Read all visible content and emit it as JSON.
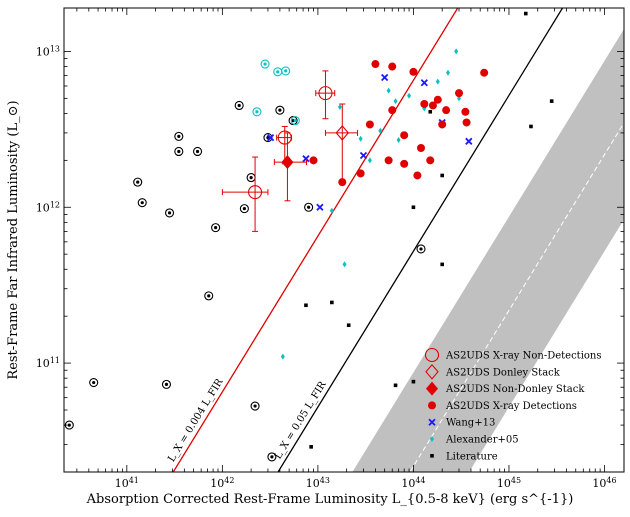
{
  "chart_data": {
    "type": "scatter",
    "xlabel": "Absorption Corrected Rest-Frame Luminosity L_{0.5-8 keV} (erg s^{-1})",
    "ylabel": "Rest-Frame Far Infrared Luminosity (L_⊙)",
    "x_scale": "log",
    "y_scale": "log",
    "xlim": [
      2.2e+40,
      1.6e+46
    ],
    "ylim": [
      20000000000.0,
      19000000000000.0
    ],
    "x_ticks": [
      {
        "value": 1e+41,
        "label": "10^41"
      },
      {
        "value": 1e+42,
        "label": "10^42"
      },
      {
        "value": 1e+43,
        "label": "10^43"
      },
      {
        "value": 1e+44,
        "label": "10^44"
      },
      {
        "value": 1e+45,
        "label": "10^45"
      },
      {
        "value": 1e+46,
        "label": "10^46"
      }
    ],
    "y_ticks": [
      {
        "value": 100000000000.0,
        "label": "10^11"
      },
      {
        "value": 1000000000000.0,
        "label": "10^12"
      },
      {
        "value": 10000000000000.0,
        "label": "10^13"
      }
    ],
    "relations": [
      {
        "label": "L_X = 0.004 L_FIR",
        "fraction": 0.004,
        "color": "#e00000",
        "style": "solid"
      },
      {
        "label": "L_X = 0.05 L_FIR",
        "fraction": 0.05,
        "color": "#000000",
        "style": "solid"
      }
    ],
    "band": {
      "fraction_center": 1.2,
      "fraction_low": 0.3,
      "fraction_high": 5.0,
      "fill": "#c0c0c0",
      "center_color": "#ffffff"
    },
    "legend_position": "lower-right",
    "series": [
      {
        "name": "AS2UDS X-ray Non-Detections",
        "marker": "open-circle-errorbar",
        "color": "#e00000",
        "points": [
          {
            "x": 2.2e+42,
            "y": 1250000000000.0,
            "x_err": [
              1.2e+42,
              8e+41
            ],
            "y_err": [
              550000000000.0,
              850000000000.0
            ]
          },
          {
            "x": 4.5e+42,
            "y": 2800000000000.0,
            "x_err": [
              8e+41,
              8e+41
            ],
            "y_err": [
              900000000000.0,
              500000000000.0
            ]
          },
          {
            "x": 1.2e+43,
            "y": 5400000000000.0,
            "x_err": [
              2.5e+42,
              3e+42
            ],
            "y_err": [
              1700000000000.0,
              2100000000000.0
            ]
          }
        ]
      },
      {
        "name": "AS2UDS Donley Stack",
        "marker": "open-diamond-errorbar",
        "color": "#e00000",
        "points": [
          {
            "x": 1.8e+43,
            "y": 3000000000000.0,
            "x_err": [
              6e+42,
              8e+42
            ],
            "y_err": [
              1600000000000.0,
              1600000000000.0
            ]
          }
        ]
      },
      {
        "name": "AS2UDS Non-Donley Stack",
        "marker": "filled-diamond-errorbar",
        "color": "#e00000",
        "points": [
          {
            "x": 4.8e+42,
            "y": 1950000000000.0,
            "x_err": [
              1.3e+42,
              2.8e+42
            ],
            "y_err": [
              850000000000.0,
              1050000000000.0
            ]
          }
        ]
      },
      {
        "name": "AS2UDS X-ray Detections",
        "marker": "filled-circle",
        "color": "#e00000",
        "points": [
          {
            "x": 1.8e+43,
            "y": 1450000000000.0
          },
          {
            "x": 9e+42,
            "y": 2000000000000.0
          },
          {
            "x": 2.8e+43,
            "y": 1650000000000.0
          },
          {
            "x": 3.5e+43,
            "y": 3400000000000.0
          },
          {
            "x": 4e+43,
            "y": 8300000000000.0
          },
          {
            "x": 5.5e+43,
            "y": 2000000000000.0
          },
          {
            "x": 6e+43,
            "y": 4200000000000.0
          },
          {
            "x": 6e+43,
            "y": 8000000000000.0
          },
          {
            "x": 8e+43,
            "y": 1900000000000.0
          },
          {
            "x": 8e+43,
            "y": 2900000000000.0
          },
          {
            "x": 1e+44,
            "y": 7400000000000.0
          },
          {
            "x": 1.1e+44,
            "y": 1600000000000.0
          },
          {
            "x": 1.2e+44,
            "y": 2400000000000.0
          },
          {
            "x": 1.3e+44,
            "y": 4600000000000.0
          },
          {
            "x": 1.5e+44,
            "y": 2000000000000.0
          },
          {
            "x": 1.6e+44,
            "y": 4500000000000.0
          },
          {
            "x": 1.8e+44,
            "y": 4900000000000.0
          },
          {
            "x": 2e+44,
            "y": 3400000000000.0
          },
          {
            "x": 2.2e+44,
            "y": 4200000000000.0
          },
          {
            "x": 3e+44,
            "y": 5400000000000.0
          },
          {
            "x": 3.5e+44,
            "y": 4100000000000.0
          },
          {
            "x": 3.6e+44,
            "y": 3500000000000.0
          },
          {
            "x": 5.5e+44,
            "y": 7300000000000.0
          }
        ]
      },
      {
        "name": "Wang+13",
        "marker": "x-cross",
        "color": "#1a1aff",
        "points": [
          {
            "x": 3.2e+42,
            "y": 2800000000000.0
          },
          {
            "x": 7.5e+42,
            "y": 2050000000000.0
          },
          {
            "x": 1.05e+43,
            "y": 1000000000000.0
          },
          {
            "x": 3e+43,
            "y": 2150000000000.0
          },
          {
            "x": 5e+43,
            "y": 6800000000000.0
          },
          {
            "x": 1.3e+44,
            "y": 6300000000000.0
          },
          {
            "x": 2e+44,
            "y": 3500000000000.0
          },
          {
            "x": 3.8e+44,
            "y": 2650000000000.0
          }
        ]
      },
      {
        "name": "Alexander+05",
        "marker": "small-diamond",
        "color": "#10c0c0",
        "points": [
          {
            "x": 1.4e+43,
            "y": 950000000000.0
          },
          {
            "x": 1.9e+43,
            "y": 430000000000.0
          },
          {
            "x": 2.8e+43,
            "y": 2750000000000.0
          },
          {
            "x": 4.3e+42,
            "y": 110000000000.0
          },
          {
            "x": 3.5e+43,
            "y": 2000000000000.0
          },
          {
            "x": 4.5e+43,
            "y": 3100000000000.0
          },
          {
            "x": 5.5e+43,
            "y": 5600000000000.0
          },
          {
            "x": 6.5e+43,
            "y": 4800000000000.0
          },
          {
            "x": 7e+43,
            "y": 2700000000000.0
          },
          {
            "x": 9e+43,
            "y": 5200000000000.0
          },
          {
            "x": 1.3e+44,
            "y": 4300000000000.0
          },
          {
            "x": 1.8e+44,
            "y": 6400000000000.0
          },
          {
            "x": 2.3e+44,
            "y": 7300000000000.0
          },
          {
            "x": 2.8e+44,
            "y": 10000000000000.0
          },
          {
            "x": 3e+44,
            "y": 5000000000000.0
          },
          {
            "x": 1.7e+43,
            "y": 4400000000000.0
          }
        ]
      },
      {
        "name": "Literature",
        "marker": "small-square",
        "color": "#000000",
        "points": [
          {
            "x": 7.5e+42,
            "y": 235000000000.0
          },
          {
            "x": 1.4e+43,
            "y": 245000000000.0
          },
          {
            "x": 2.1e+43,
            "y": 175000000000.0
          },
          {
            "x": 8.5e+42,
            "y": 29000000000.0
          },
          {
            "x": 1e+44,
            "y": 1000000000000.0
          },
          {
            "x": 2e+44,
            "y": 430000000000.0
          },
          {
            "x": 1.5e+45,
            "y": 17500000000000.0
          },
          {
            "x": 1.7e+45,
            "y": 3300000000000.0
          },
          {
            "x": 2.8e+45,
            "y": 4800000000000.0
          },
          {
            "x": 6.5e+43,
            "y": 72000000000.0
          },
          {
            "x": 1e+44,
            "y": 76000000000.0
          },
          {
            "x": 1.5e+44,
            "y": 4100000000000.0
          },
          {
            "x": 2e+44,
            "y": 1600000000000.0
          }
        ]
      },
      {
        "name": "AGN hosts (black circled dot)",
        "marker": "circled-dot",
        "color": "#000000",
        "legend": false,
        "points": [
          {
            "x": 2.5e+40,
            "y": 40000000000.0
          },
          {
            "x": 4.5e+40,
            "y": 75000000000.0
          },
          {
            "x": 2.6e+41,
            "y": 73000000000.0
          },
          {
            "x": 1.3e+41,
            "y": 1450000000000.0
          },
          {
            "x": 1.45e+41,
            "y": 1070000000000.0
          },
          {
            "x": 2.8e+41,
            "y": 920000000000.0
          },
          {
            "x": 3.5e+41,
            "y": 2280000000000.0
          },
          {
            "x": 3.5e+41,
            "y": 2850000000000.0
          },
          {
            "x": 5.5e+41,
            "y": 2280000000000.0
          },
          {
            "x": 8.5e+41,
            "y": 740000000000.0
          },
          {
            "x": 1.5e+42,
            "y": 4500000000000.0
          },
          {
            "x": 1.7e+42,
            "y": 980000000000.0
          },
          {
            "x": 7.2e+41,
            "y": 270000000000.0
          },
          {
            "x": 2.2e+42,
            "y": 53000000000.0
          },
          {
            "x": 3.3e+42,
            "y": 25000000000.0
          },
          {
            "x": 8e+42,
            "y": 1000000000000.0
          },
          {
            "x": 2e+42,
            "y": 1550000000000.0
          },
          {
            "x": 5.5e+42,
            "y": 3600000000000.0
          },
          {
            "x": 3e+42,
            "y": 2800000000000.0
          },
          {
            "x": 4e+42,
            "y": 4200000000000.0
          },
          {
            "x": 1.2e+44,
            "y": 540000000000.0
          }
        ]
      },
      {
        "name": "cyan circled points",
        "marker": "circled-dot",
        "color": "#10c0c0",
        "legend": false,
        "points": [
          {
            "x": 2.8e+42,
            "y": 8300000000000.0
          },
          {
            "x": 3.8e+42,
            "y": 7400000000000.0
          },
          {
            "x": 4.6e+42,
            "y": 7500000000000.0
          },
          {
            "x": 2.3e+42,
            "y": 4100000000000.0
          },
          {
            "x": 5.8e+42,
            "y": 3600000000000.0
          }
        ]
      }
    ]
  }
}
